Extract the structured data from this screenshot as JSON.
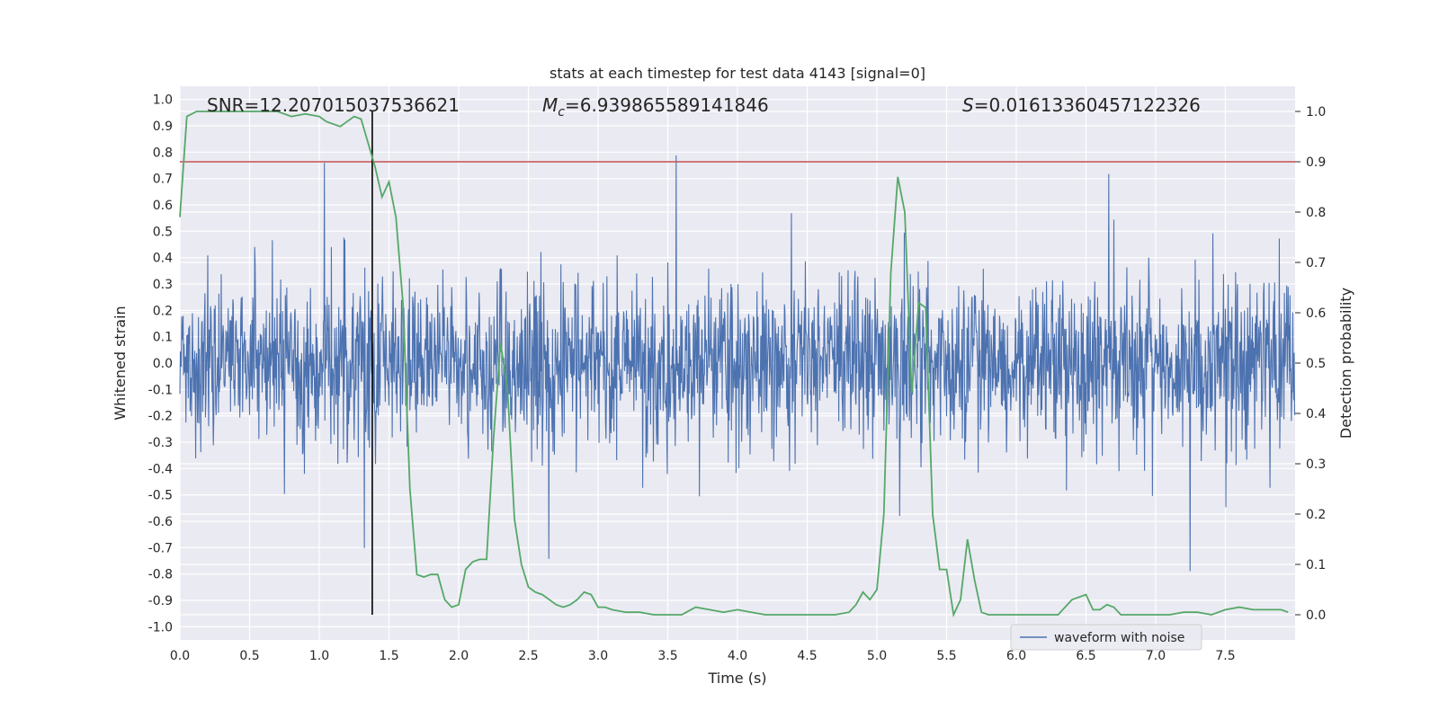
{
  "chart_data": {
    "type": "line",
    "title": "stats at each timestep for test data 4143 [signal=0]",
    "xlabel": "Time (s)",
    "ylabel": "Whitened strain",
    "ylabel_right": "Detection probability",
    "xlim": [
      0.0,
      8.0
    ],
    "ylim": [
      -1.05,
      1.05
    ],
    "ylim_right": [
      -0.05,
      1.05
    ],
    "xticks": [
      "0.0",
      "0.5",
      "1.0",
      "1.5",
      "2.0",
      "2.5",
      "3.0",
      "3.5",
      "4.0",
      "4.5",
      "5.0",
      "5.5",
      "6.0",
      "6.5",
      "7.0",
      "7.5"
    ],
    "yticks": [
      "1.0",
      "0.9",
      "0.8",
      "0.7",
      "0.6",
      "0.5",
      "0.4",
      "0.3",
      "0.2",
      "0.1",
      "0.0",
      "-0.1",
      "-0.2",
      "-0.3",
      "-0.4",
      "-0.5",
      "-0.6",
      "-0.7",
      "-0.8",
      "-0.9",
      "-1.0"
    ],
    "yticks_right": [
      "1.0",
      "0.9",
      "0.8",
      "0.7",
      "0.6",
      "0.5",
      "0.4",
      "0.3",
      "0.2",
      "0.1",
      "0.0"
    ],
    "grid": true,
    "legend": {
      "position": "lower right",
      "entries": [
        "waveform with noise"
      ]
    },
    "annotations": {
      "snr_text": "SNR=12.207015037536621",
      "mc_prefix": "M",
      "mc_sub": "c",
      "mc_value": "=6.939865589141846",
      "s_prefix": "S",
      "s_value": "=0.016133604571223​26"
    },
    "threshold_line": {
      "axis": "right",
      "value": 0.9,
      "color": "#c44e52"
    },
    "marker_line": {
      "x": 1.38,
      "color": "#000000"
    },
    "series": [
      {
        "name": "waveform with noise",
        "axis": "left",
        "color": "#4c72b0",
        "description": "dense whitened strain noise, roughly ±0.4 envelope with spikes to ±1.0"
      },
      {
        "name": "detection probability",
        "axis": "right",
        "color": "#55a868",
        "x": [
          0.0,
          0.05,
          0.12,
          0.2,
          0.3,
          0.4,
          0.5,
          0.6,
          0.7,
          0.8,
          0.9,
          1.0,
          1.05,
          1.1,
          1.15,
          1.2,
          1.25,
          1.3,
          1.4,
          1.45,
          1.5,
          1.55,
          1.6,
          1.65,
          1.7,
          1.75,
          1.8,
          1.85,
          1.9,
          1.95,
          2.0,
          2.05,
          2.1,
          2.15,
          2.2,
          2.25,
          2.3,
          2.35,
          2.4,
          2.45,
          2.5,
          2.55,
          2.6,
          2.65,
          2.7,
          2.75,
          2.8,
          2.85,
          2.9,
          2.95,
          3.0,
          3.05,
          3.1,
          3.2,
          3.3,
          3.4,
          3.5,
          3.6,
          3.7,
          3.8,
          3.9,
          4.0,
          4.1,
          4.2,
          4.3,
          4.4,
          4.5,
          4.6,
          4.7,
          4.8,
          4.85,
          4.9,
          4.95,
          5.0,
          5.05,
          5.1,
          5.15,
          5.2,
          5.25,
          5.3,
          5.35,
          5.4,
          5.45,
          5.5,
          5.55,
          5.6,
          5.65,
          5.7,
          5.75,
          5.8,
          5.85,
          5.9,
          6.0,
          6.1,
          6.2,
          6.3,
          6.4,
          6.5,
          6.55,
          6.6,
          6.65,
          6.7,
          6.75,
          6.8,
          6.9,
          7.0,
          7.1,
          7.2,
          7.3,
          7.4,
          7.5,
          7.6,
          7.7,
          7.8,
          7.9,
          7.95
        ],
        "values": [
          0.79,
          0.99,
          1.0,
          1.0,
          1.0,
          1.0,
          1.0,
          1.0,
          1.0,
          0.99,
          0.995,
          0.99,
          0.98,
          0.975,
          0.97,
          0.98,
          0.99,
          0.985,
          0.89,
          0.83,
          0.86,
          0.79,
          0.62,
          0.25,
          0.08,
          0.075,
          0.08,
          0.08,
          0.03,
          0.015,
          0.02,
          0.09,
          0.105,
          0.11,
          0.11,
          0.35,
          0.54,
          0.45,
          0.19,
          0.1,
          0.055,
          0.045,
          0.04,
          0.03,
          0.02,
          0.015,
          0.02,
          0.03,
          0.045,
          0.04,
          0.015,
          0.015,
          0.01,
          0.005,
          0.005,
          0.0,
          0.0,
          0.0,
          0.015,
          0.01,
          0.005,
          0.01,
          0.005,
          0.0,
          0.0,
          0.0,
          0.0,
          0.0,
          0.0,
          0.005,
          0.02,
          0.045,
          0.03,
          0.05,
          0.2,
          0.68,
          0.87,
          0.8,
          0.44,
          0.62,
          0.61,
          0.2,
          0.09,
          0.09,
          0.0,
          0.03,
          0.15,
          0.07,
          0.005,
          0.0,
          0.0,
          0.0,
          0.0,
          0.0,
          0.0,
          0.0,
          0.03,
          0.04,
          0.01,
          0.01,
          0.02,
          0.015,
          0.0,
          0.0,
          0.0,
          0.0,
          0.0,
          0.005,
          0.005,
          0.0,
          0.01,
          0.015,
          0.01,
          0.01,
          0.01,
          0.005
        ]
      }
    ]
  }
}
